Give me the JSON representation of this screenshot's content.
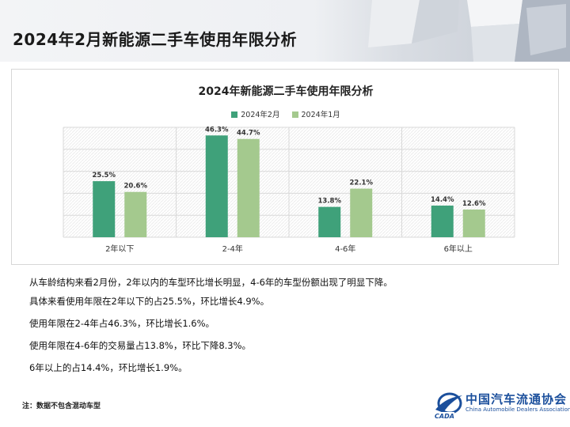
{
  "page": {
    "title": "2024年2月新能源二手车使用年限分析"
  },
  "chart_data": {
    "type": "bar",
    "title": "2024年新能源二手车使用年限分析",
    "categories": [
      "2年以下",
      "2-4年",
      "4-6年",
      "6年以上"
    ],
    "series": [
      {
        "name": "2024年2月",
        "values": [
          25.5,
          46.3,
          13.8,
          14.4
        ],
        "labels": [
          "25.5%",
          "46.3%",
          "13.8%",
          "14.4%"
        ],
        "color": "#3fa17a"
      },
      {
        "name": "2024年1月",
        "values": [
          20.6,
          44.7,
          22.1,
          12.6
        ],
        "labels": [
          "20.6%",
          "44.7%",
          "22.1%",
          "12.6%"
        ],
        "color": "#a4c98e"
      }
    ],
    "ylim": [
      0,
      50
    ],
    "grid": true,
    "legend": "top-center",
    "xlabel": "",
    "ylabel": ""
  },
  "analysis": {
    "lines": [
      "从车龄结构来看2月份，2年以内的车型环比增长明显，4-6年的车型份额出现了明显下降。",
      "具体来看使用年限在2年以下的占25.5%，环比增长4.9%。",
      "使用年限在2-4年占46.3%，环比增长1.6%。",
      "使用年限在4-6年的交易量占13.8%，环比下降8.3%。",
      "6年以上的占14.4%，环比增长1.9%。"
    ]
  },
  "note": "注：数据不包含混动车型",
  "logo": {
    "name_cn": "中国汽车流通协会",
    "name_en": "China Automobile Dealers Association",
    "badge": "CADA"
  }
}
